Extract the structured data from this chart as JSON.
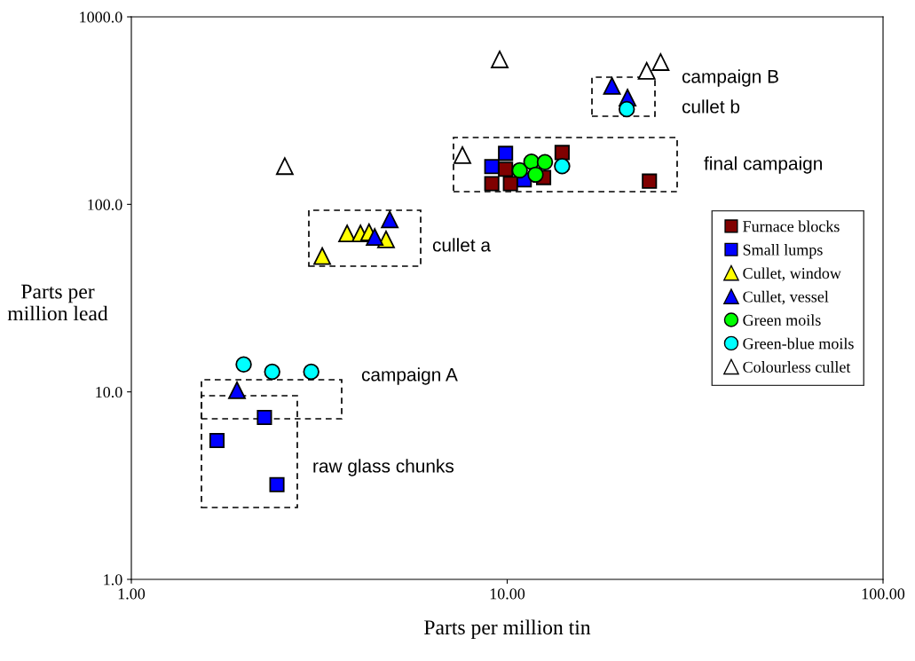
{
  "chart_data": {
    "type": "scatter",
    "xlabel": "Parts per million tin",
    "ylabel": "Parts per\nmillion lead",
    "log": "xy",
    "grid": false,
    "legend": "right",
    "xlim": [
      1,
      100
    ],
    "xticks": [
      {
        "value": 1,
        "label": "1.00"
      },
      {
        "value": 10,
        "label": "10.00"
      },
      {
        "value": 100,
        "label": "100.00"
      }
    ],
    "ylim": [
      1,
      1000
    ],
    "yticks": [
      {
        "value": 1,
        "label": "1.0"
      },
      {
        "value": 10,
        "label": "10.0"
      },
      {
        "value": 100,
        "label": "100.0"
      },
      {
        "value": 1000,
        "label": "1000.0"
      }
    ],
    "annotations": [
      "campaign B",
      "cullet b",
      "final campaign",
      "cullet a",
      "campaign A",
      "raw glass chunks"
    ],
    "series": [
      {
        "name": "Furnace blocks",
        "color": "#800000",
        "marker": "square",
        "x": [
          9.1,
          9.9,
          10.2,
          14.0,
          12.5,
          23.9
        ],
        "values": [
          129,
          154,
          129,
          189,
          139,
          133
        ]
      },
      {
        "name": "Small lumps",
        "color": "#0000ff",
        "marker": "square",
        "x": [
          9.1,
          9.9,
          11.1,
          2.26,
          1.69,
          2.44
        ],
        "values": [
          159,
          187,
          135,
          7.3,
          5.5,
          3.2
        ]
      },
      {
        "name": "Cullet, window",
        "color": "#ffff00",
        "marker": "triangle",
        "x": [
          3.22,
          3.75,
          4.07,
          4.29,
          4.76
        ],
        "values": [
          53,
          70,
          70,
          71,
          65
        ]
      },
      {
        "name": "Cullet, vessel",
        "color": "#0000ff",
        "marker": "triangle",
        "x": [
          1.91,
          4.87,
          4.44,
          19.0,
          20.9
        ],
        "values": [
          10.2,
          83,
          67,
          428,
          371
        ]
      },
      {
        "name": "Green moils",
        "color": "#00ff00",
        "marker": "circle",
        "x": [
          10.8,
          11.6,
          12.6,
          11.9
        ],
        "values": [
          152,
          169,
          168,
          144
        ]
      },
      {
        "name": "Green-blue moils",
        "color": "#00ffff",
        "marker": "circle",
        "x": [
          14.0,
          1.99,
          2.37,
          3.01,
          20.8
        ],
        "values": [
          160,
          14.0,
          12.8,
          12.8,
          322
        ]
      },
      {
        "name": "Colourless cullet",
        "color": "#ffffff",
        "marker": "triangle",
        "x": [
          9.55,
          23.5,
          25.6,
          7.6,
          2.56
        ],
        "values": [
          593,
          515,
          574,
          183,
          160
        ]
      }
    ]
  }
}
